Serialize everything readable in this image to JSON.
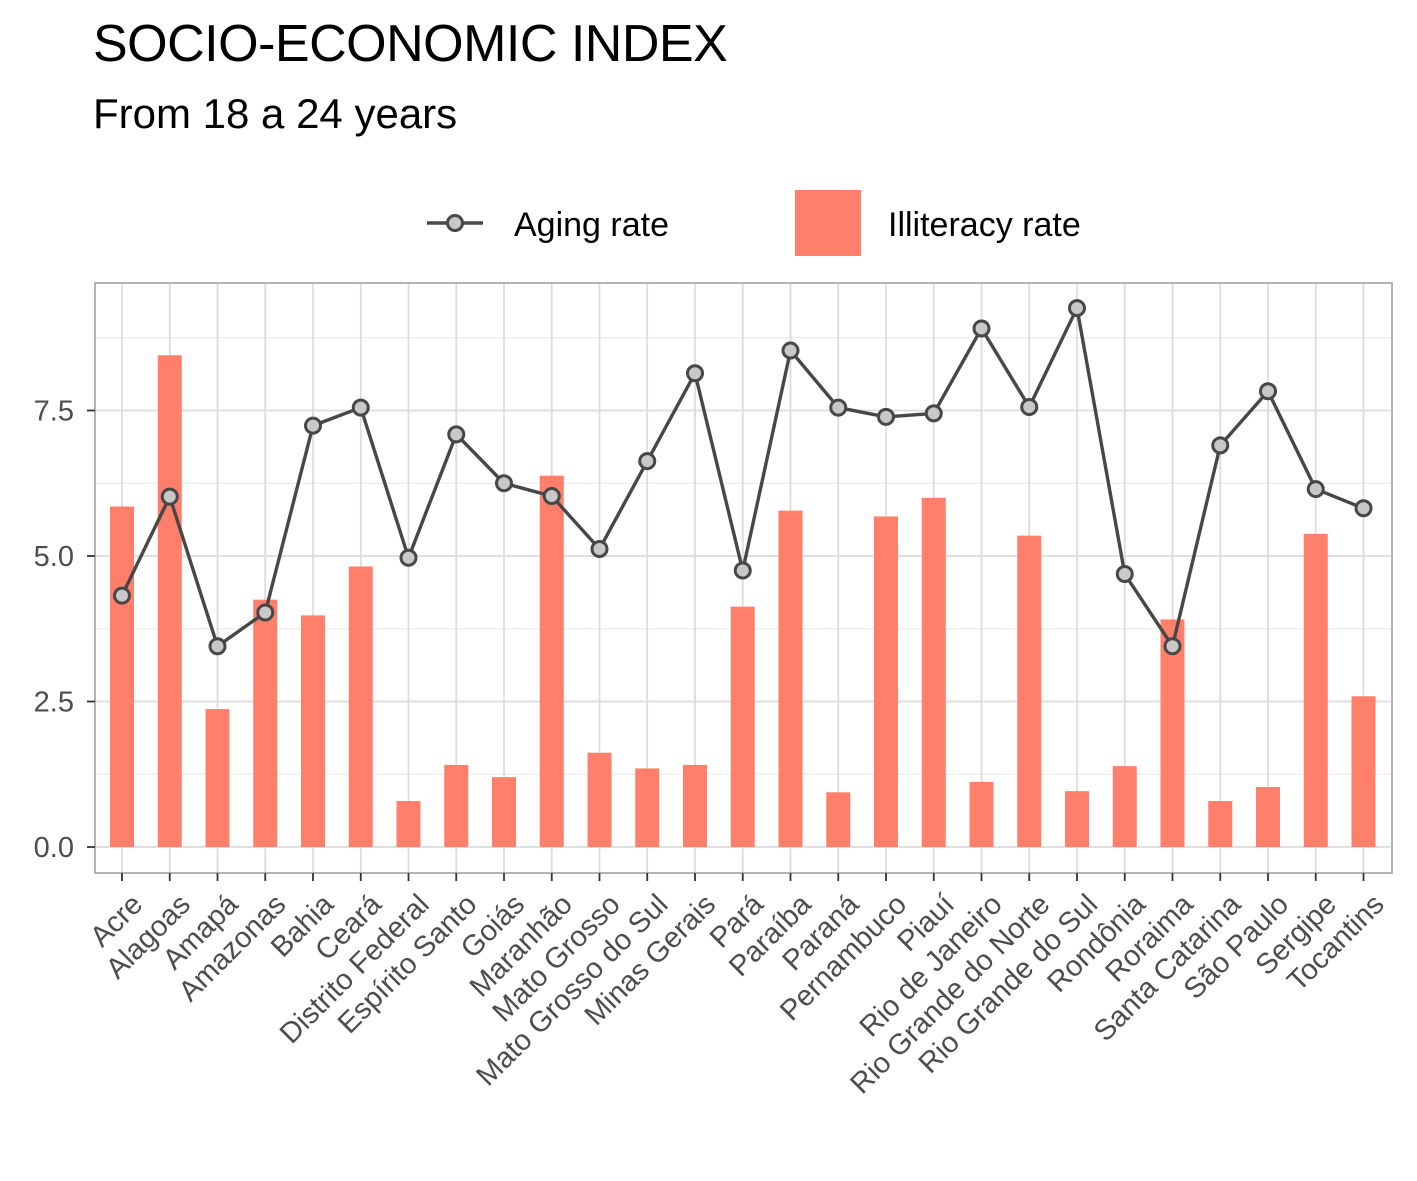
{
  "chart_data": {
    "type": "bar",
    "title": "SOCIO-ECONOMIC INDEX",
    "subtitle": "From 18 a 24 years",
    "xlabel": "",
    "ylabel": "",
    "ylim": [
      -0.45,
      9.5
    ],
    "yticks": [
      0.0,
      2.5,
      5.0,
      7.5
    ],
    "ytick_labels": [
      "0.0",
      "2.5",
      "5.0",
      "7.5"
    ],
    "grid": true,
    "legend_position": "top",
    "categories": [
      "Acre",
      "Alagoas",
      "Amapá",
      "Amazonas",
      "Bahia",
      "Ceará",
      "Distrito Federal",
      "Espírito Santo",
      "Goiás",
      "Maranhão",
      "Mato Grosso",
      "Mato Grosso do Sul",
      "Minas Gerais",
      "Pará",
      "Paraíba",
      "Paraná",
      "Pernambuco",
      "Piauí",
      "Rio de Janeiro",
      "Rio Grande do Norte",
      "Rio Grande do Sul",
      "Rondônia",
      "Roraima",
      "Santa Catarina",
      "São Paulo",
      "Sergipe",
      "Tocantins"
    ],
    "series": [
      {
        "name": "Illiteracy rate",
        "type": "bar",
        "color": "#ff7f6b",
        "values": [
          5.85,
          8.45,
          2.37,
          4.25,
          3.98,
          4.82,
          0.79,
          1.41,
          1.2,
          6.38,
          1.62,
          1.35,
          1.41,
          4.13,
          5.78,
          0.94,
          5.68,
          6.0,
          1.12,
          5.35,
          0.96,
          1.39,
          3.91,
          0.79,
          1.03,
          5.38,
          2.59
        ]
      },
      {
        "name": "Aging rate",
        "type": "line",
        "color": "#474747",
        "marker_fill": "#c8c8c8",
        "values": [
          4.32,
          6.02,
          3.45,
          4.03,
          7.24,
          7.55,
          4.97,
          7.09,
          6.25,
          6.03,
          5.12,
          6.63,
          8.14,
          4.75,
          8.53,
          7.55,
          7.39,
          7.45,
          8.91,
          7.56,
          9.26,
          4.69,
          3.45,
          6.9,
          7.83,
          6.15,
          5.82
        ]
      }
    ]
  }
}
